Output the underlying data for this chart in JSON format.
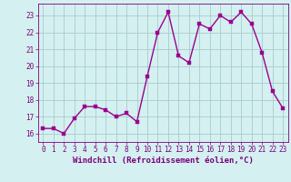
{
  "x": [
    0,
    1,
    2,
    3,
    4,
    5,
    6,
    7,
    8,
    9,
    10,
    11,
    12,
    13,
    14,
    15,
    16,
    17,
    18,
    19,
    20,
    21,
    22,
    23
  ],
  "y": [
    16.3,
    16.3,
    16.0,
    16.9,
    17.6,
    17.6,
    17.4,
    17.0,
    17.2,
    16.7,
    19.4,
    22.0,
    23.2,
    20.6,
    20.2,
    22.5,
    22.2,
    23.0,
    22.6,
    23.2,
    22.5,
    20.8,
    18.5,
    17.5
  ],
  "line_color": "#9b0090",
  "marker_color": "#9b0090",
  "bg_color": "#d4f0f0",
  "grid_color": "#aacccc",
  "xlabel": "Windchill (Refroidissement éolien,°C)",
  "xlabel_color": "#7b007b",
  "tick_color": "#7b007b",
  "ylim": [
    15.5,
    23.7
  ],
  "yticks": [
    16,
    17,
    18,
    19,
    20,
    21,
    22,
    23
  ],
  "xlim": [
    -0.5,
    23.5
  ],
  "xticks": [
    0,
    1,
    2,
    3,
    4,
    5,
    6,
    7,
    8,
    9,
    10,
    11,
    12,
    13,
    14,
    15,
    16,
    17,
    18,
    19,
    20,
    21,
    22,
    23
  ],
  "tick_fontsize": 5.5,
  "xlabel_fontsize": 6.5,
  "line_width": 1.0,
  "marker_size": 2.5
}
